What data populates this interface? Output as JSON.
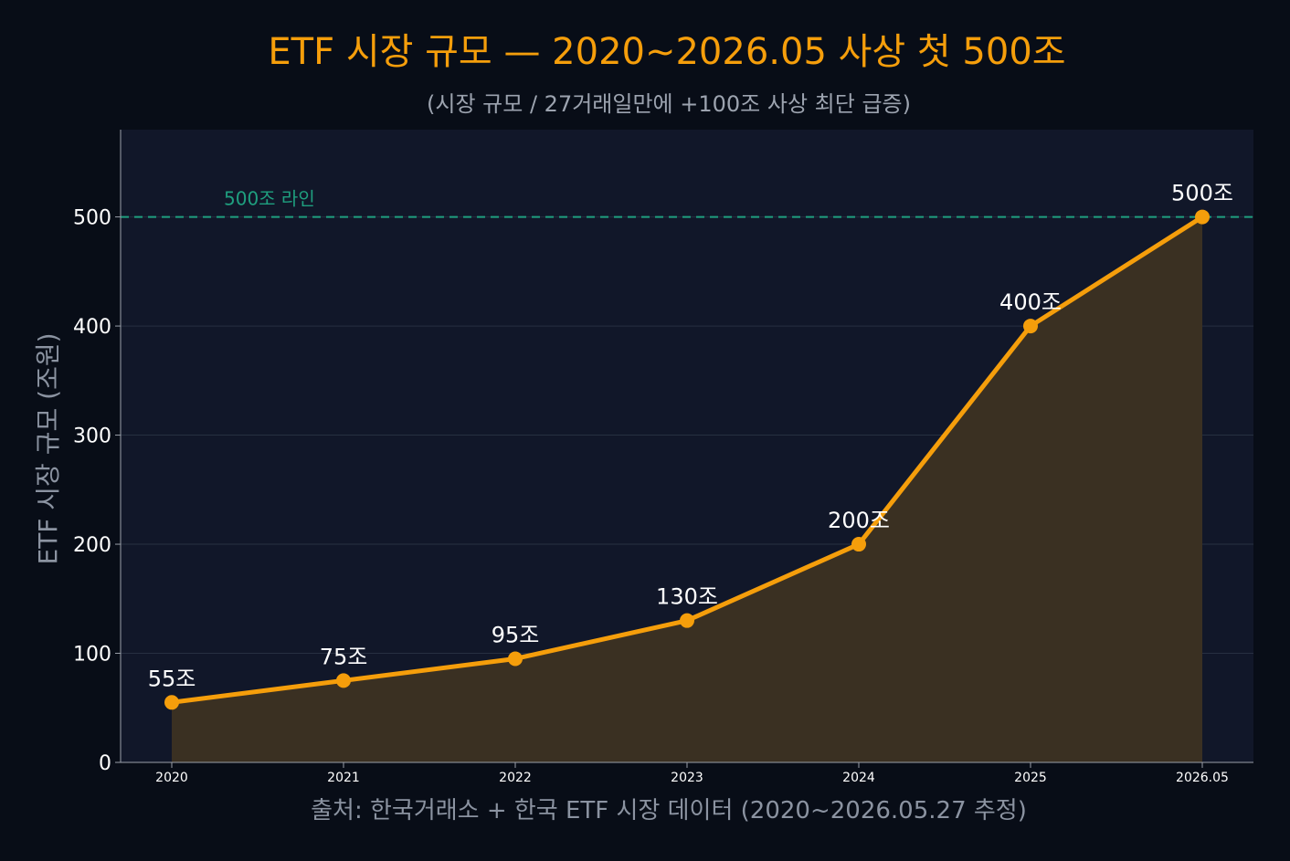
{
  "colors": {
    "background": "#080d17",
    "plot_background": "#111729",
    "line": "#f59e0b",
    "area_fill": "#3a3022",
    "reference_line": "#1f9f7f",
    "title": "#f59e0b",
    "subtitle": "#9ca3af",
    "ytick": "#ffffff",
    "xtick": "#ffffff",
    "ylabel": "#8b93a1",
    "source": "#8b93a1",
    "data_label": "#ffffff",
    "grid": "#273041",
    "axis": "#9aa0aa"
  },
  "chart_data": {
    "type": "line",
    "title": "ETF 시장 규모 — 2020~2026.05 사상 첫 500조",
    "subtitle": "(시장 규모 / 27거래일만에 +100조 사상 최단 급증)",
    "xlabel": "출처: 한국거래소 + 한국 ETF 시장 데이터 (2020~2026.05.27 추정)",
    "ylabel": "ETF 시장 규모 (조원)",
    "categories": [
      "2020",
      "2021",
      "2022",
      "2023",
      "2024",
      "2025",
      "2026.05"
    ],
    "values": [
      55,
      75,
      95,
      130,
      200,
      400,
      500
    ],
    "data_labels": [
      "55조",
      "75조",
      "95조",
      "130조",
      "200조",
      "400조",
      "500조"
    ],
    "ylim": [
      0,
      580
    ],
    "yticks": [
      0,
      100,
      200,
      300,
      400,
      500
    ],
    "grid": true,
    "area_fill": true,
    "reference_line": {
      "value": 500,
      "label": "500조 라인",
      "style": "dashed"
    }
  }
}
